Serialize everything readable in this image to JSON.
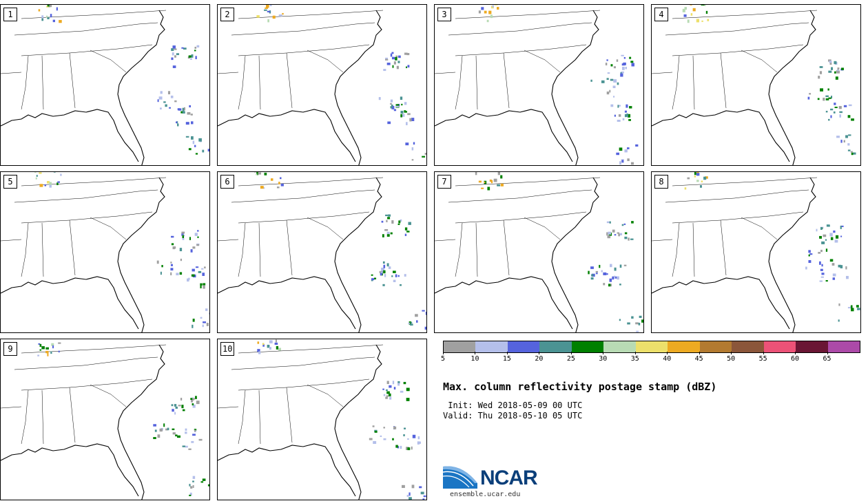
{
  "panels": [
    "1",
    "2",
    "3",
    "4",
    "5",
    "6",
    "7",
    "8",
    "9",
    "10"
  ],
  "colorbar": {
    "colors": [
      "#a0a0a0",
      "#b4bfea",
      "#5563dd",
      "#4b9393",
      "#008000",
      "#b8dbb4",
      "#ede06b",
      "#edaa22",
      "#b37a30",
      "#8b563a",
      "#ec5277",
      "#6a1634",
      "#ac4aa8"
    ],
    "ticks": [
      "5",
      "10",
      "15",
      "20",
      "25",
      "30",
      "35",
      "40",
      "45",
      "50",
      "55",
      "60",
      "65"
    ]
  },
  "title": "Max. column reflectivity postage stamp (dBZ)",
  "init": " Init: Wed 2018-05-09 00 UTC",
  "valid": "Valid: Thu 2018-05-10 05 UTC",
  "logo": {
    "text": "NCAR",
    "url": "ensemble.ucar.edu"
  }
}
